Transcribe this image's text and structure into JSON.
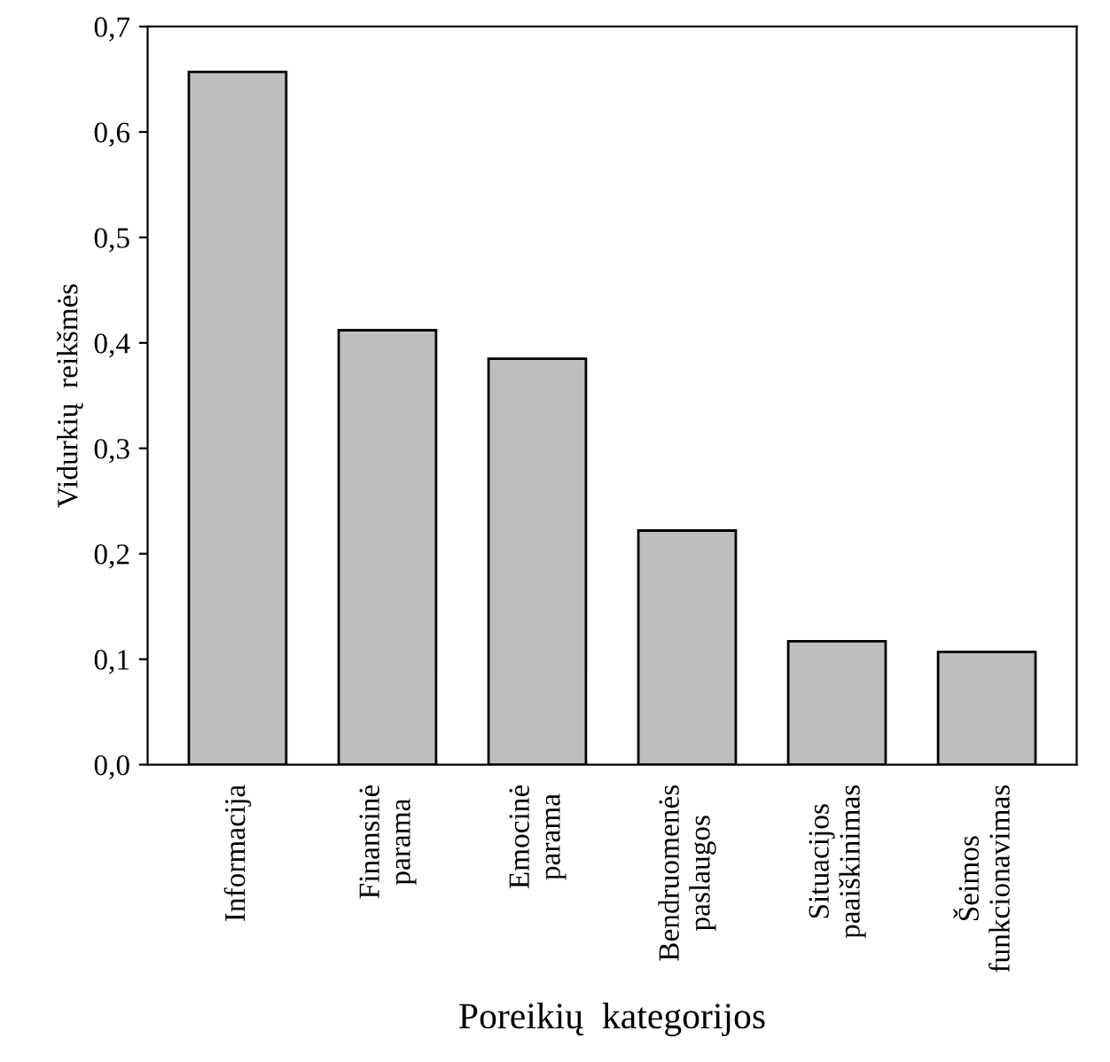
{
  "chart_data": {
    "type": "bar",
    "xlabel": "Poreikių  kategorijos",
    "ylabel": "Vidurkių  reikšmės",
    "categories": [
      "Informacija",
      "Finansinė\nparama",
      "Emocinė\nparama",
      "Bendruomenės\npaslaugos",
      "Situacijos\npaaiškinimas",
      "Šeimos\nfunkcionavimas"
    ],
    "values": [
      0.657,
      0.412,
      0.385,
      0.222,
      0.117,
      0.107
    ],
    "color": "#bebebe",
    "ylim": [
      0,
      0.7
    ],
    "yticks": [
      {
        "value": 0,
        "label": "0,0"
      },
      {
        "value": 0.1,
        "label": "0,1"
      },
      {
        "value": 0.2,
        "label": "0,2"
      },
      {
        "value": 0.3,
        "label": "0,3"
      },
      {
        "value": 0.4,
        "label": "0,4"
      },
      {
        "value": 0.5,
        "label": "0,5"
      },
      {
        "value": 0.6,
        "label": "0,6"
      },
      {
        "value": 0.7,
        "label": "0,7"
      }
    ],
    "grid": false,
    "legend": false
  }
}
